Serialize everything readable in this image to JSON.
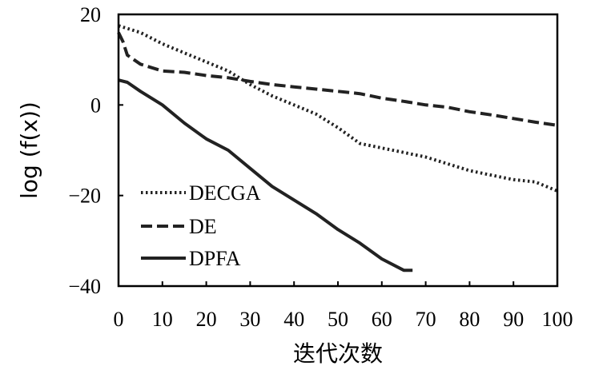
{
  "chart_data": {
    "type": "line",
    "xlabel": "迭代次数",
    "ylabel": "log (f(x))",
    "xlim": [
      0,
      100
    ],
    "ylim": [
      -40,
      20
    ],
    "x_ticks": [
      0,
      10,
      20,
      30,
      40,
      50,
      60,
      70,
      80,
      90,
      100
    ],
    "y_ticks": [
      20,
      0,
      -20,
      -40
    ],
    "y_tick_labels": [
      "20",
      "0",
      "−20",
      "−40"
    ],
    "grid": false,
    "legend_position": "bottom-left",
    "series": [
      {
        "name": "DECGA",
        "style": "dotted",
        "x": [
          0,
          5,
          10,
          15,
          20,
          25,
          30,
          35,
          40,
          45,
          50,
          55,
          60,
          65,
          70,
          75,
          80,
          85,
          90,
          95,
          100
        ],
        "y": [
          17.5,
          16,
          13.5,
          11.5,
          9.5,
          7.5,
          4.5,
          2,
          0,
          -2,
          -5,
          -8.5,
          -9.5,
          -10.5,
          -11.5,
          -13,
          -14.5,
          -15.5,
          -16.5,
          -17,
          -19
        ]
      },
      {
        "name": "DE",
        "style": "dashed",
        "x": [
          0,
          1,
          2,
          5,
          10,
          15,
          20,
          25,
          30,
          35,
          40,
          45,
          50,
          55,
          60,
          65,
          70,
          75,
          80,
          85,
          90,
          95,
          100
        ],
        "y": [
          16,
          14,
          11,
          9,
          7.5,
          7.2,
          6.5,
          6,
          5.2,
          4.5,
          4,
          3.5,
          3,
          2.5,
          1.5,
          0.8,
          0,
          -0.5,
          -1.5,
          -2.2,
          -3,
          -3.8,
          -4.5
        ]
      },
      {
        "name": "DPFA",
        "style": "solid",
        "x": [
          0,
          2,
          5,
          10,
          15,
          20,
          25,
          30,
          35,
          40,
          45,
          50,
          55,
          60,
          65,
          67
        ],
        "y": [
          5.5,
          5,
          3,
          0,
          -4,
          -7.5,
          -10,
          -14,
          -18,
          -21,
          -24,
          -27.5,
          -30.5,
          -34,
          -36.5,
          -36.5
        ]
      }
    ]
  }
}
